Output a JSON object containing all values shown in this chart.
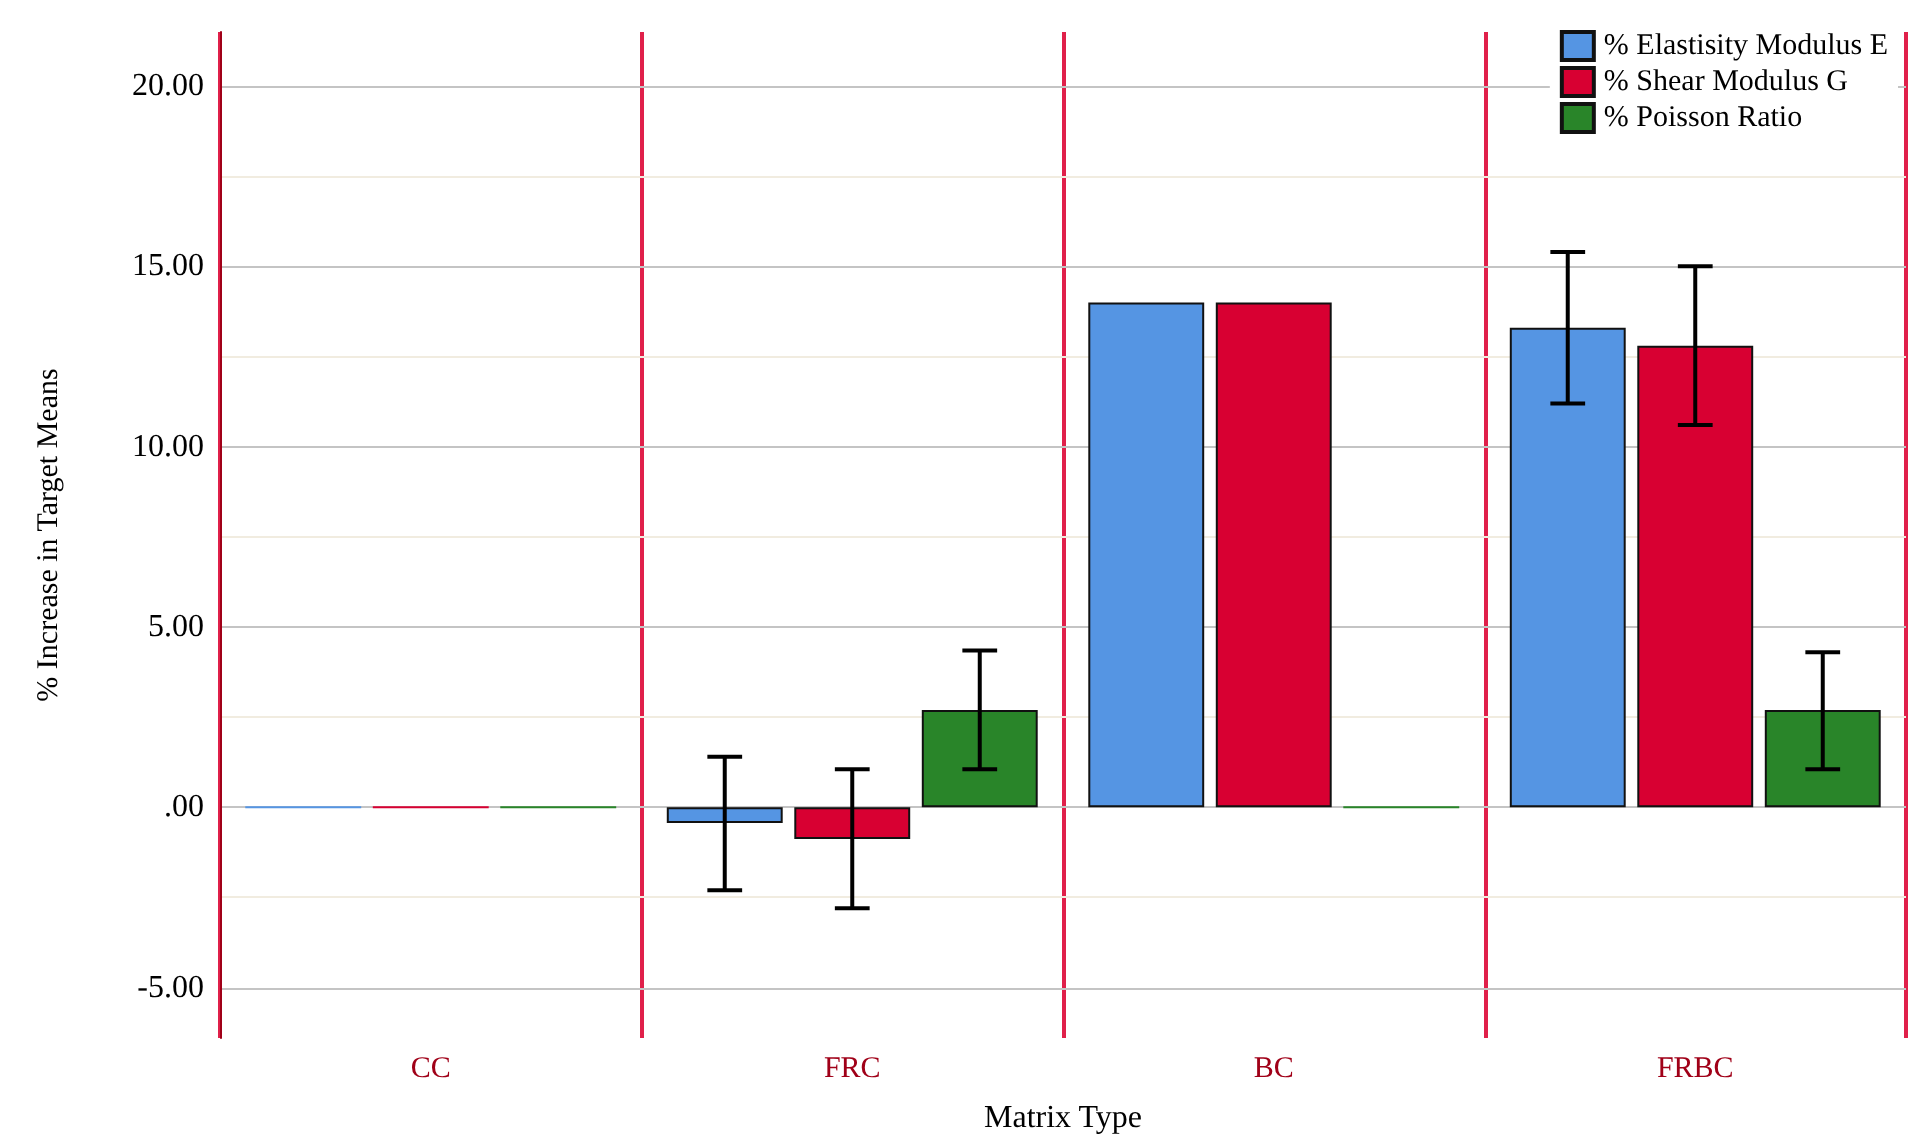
{
  "chart_data": {
    "type": "bar",
    "xlabel": "Matrix Type",
    "ylabel": "% Increase in Target Means",
    "categories": [
      "CC",
      "FRC",
      "BC",
      "FRBC"
    ],
    "series": [
      {
        "name": "% Elastisity Modulus E",
        "color": "#5595e3",
        "values": [
          0,
          -0.44,
          14.0,
          13.3
        ],
        "errors": [
          null,
          [
            -2.3,
            1.4
          ],
          null,
          [
            11.2,
            15.4
          ]
        ]
      },
      {
        "name": "% Shear Modulus G",
        "color": "#d80032",
        "values": [
          0,
          -0.88,
          14.0,
          12.8
        ],
        "errors": [
          null,
          [
            -2.8,
            1.05
          ],
          null,
          [
            10.6,
            15.0
          ]
        ]
      },
      {
        "name": "% Poisson Ratio",
        "color": "#298529",
        "values": [
          0,
          2.7,
          0,
          2.7
        ],
        "errors": [
          null,
          [
            1.05,
            4.35
          ],
          null,
          [
            1.05,
            4.3
          ]
        ]
      }
    ],
    "ylim": [
      -6.4,
      21.5
    ],
    "yticks": [
      {
        "value": -5,
        "label": "-5.00"
      },
      {
        "value": -2.5,
        "label": null
      },
      {
        "value": 0,
        "label": ".00"
      },
      {
        "value": 2.5,
        "label": null
      },
      {
        "value": 5,
        "label": "5.00"
      },
      {
        "value": 7.5,
        "label": null
      },
      {
        "value": 10,
        "label": "10.00"
      },
      {
        "value": 12.5,
        "label": null
      },
      {
        "value": 15,
        "label": "15.00"
      },
      {
        "value": 17.5,
        "label": null
      },
      {
        "value": 20,
        "label": "20.00"
      }
    ],
    "grid": true,
    "legend": "top right"
  }
}
